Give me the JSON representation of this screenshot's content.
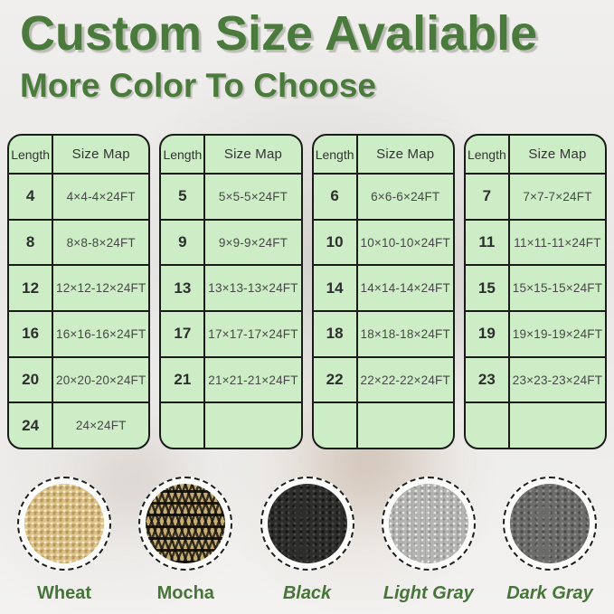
{
  "header": {
    "title": "Custom Size Avaliable",
    "subtitle": "More Color To Choose"
  },
  "colors": {
    "heading_green": "#4a7b3c",
    "label_green": "#477539",
    "table_bg": "#cdedc6",
    "table_border": "#1b1b1b",
    "swatch_wheat": "#ddc389",
    "swatch_mocha": "#1c180f",
    "swatch_black": "#2d2d2b",
    "swatch_light_gray": "#b5b5b3",
    "swatch_dark_gray": "#6c6c6a"
  },
  "tables": [
    {
      "headers": [
        "Length",
        "Size Map"
      ],
      "rows": [
        [
          "4",
          "4×4-4×24FT"
        ],
        [
          "8",
          "8×8-8×24FT"
        ],
        [
          "12",
          "12×12-12×24FT"
        ],
        [
          "16",
          "16×16-16×24FT"
        ],
        [
          "20",
          "20×20-20×24FT"
        ],
        [
          "24",
          "24×24FT"
        ]
      ]
    },
    {
      "headers": [
        "Length",
        "Size Map"
      ],
      "rows": [
        [
          "5",
          "5×5-5×24FT"
        ],
        [
          "9",
          "9×9-9×24FT"
        ],
        [
          "13",
          "13×13-13×24FT"
        ],
        [
          "17",
          "17×17-17×24FT"
        ],
        [
          "21",
          "21×21-21×24FT"
        ],
        [
          "",
          ""
        ]
      ]
    },
    {
      "headers": [
        "Length",
        "Size Map"
      ],
      "rows": [
        [
          "6",
          "6×6-6×24FT"
        ],
        [
          "10",
          "10×10-10×24FT"
        ],
        [
          "14",
          "14×14-14×24FT"
        ],
        [
          "18",
          "18×18-18×24FT"
        ],
        [
          "22",
          "22×22-22×24FT"
        ],
        [
          "",
          ""
        ]
      ]
    },
    {
      "headers": [
        "Length",
        "Size Map"
      ],
      "rows": [
        [
          "7",
          "7×7-7×24FT"
        ],
        [
          "11",
          "11×11-11×24FT"
        ],
        [
          "15",
          "15×15-15×24FT"
        ],
        [
          "19",
          "19×19-19×24FT"
        ],
        [
          "23",
          "23×23-23×24FT"
        ],
        [
          "",
          ""
        ]
      ]
    }
  ],
  "swatches": [
    {
      "label": "Wheat"
    },
    {
      "label": "Mocha"
    },
    {
      "label": "Black"
    },
    {
      "label": "Light Gray"
    },
    {
      "label": "Dark Gray"
    }
  ]
}
